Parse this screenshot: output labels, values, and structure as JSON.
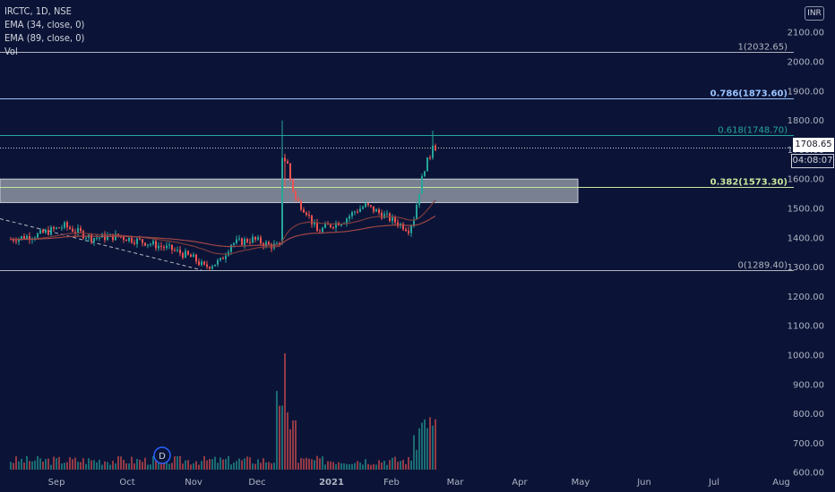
{
  "header": {
    "symbol": "IRCTC, 1D, NSE",
    "indicators": [
      "EMA (34, close, 0)",
      "EMA (89, close, 0)",
      "Vol"
    ],
    "currency": "INR"
  },
  "price_axis": {
    "current_price": "1708.65",
    "countdown": "04:08:07"
  },
  "dividend_marker": "D",
  "colors": {
    "background": "#0b1437",
    "up": "#26a69a",
    "down": "#ef5350",
    "ema34": "#7e3b3b",
    "ema89": "#a04646",
    "level_1": "#b2b5be",
    "level_0786": "#9bc3ff",
    "level_0618": "#26a69a",
    "level_0382": "#c8e69c",
    "level_0": "#b2b5be",
    "zone": "#9ea4b0"
  },
  "chart_data": {
    "type": "candlestick",
    "x_tick_labels": [
      "Sep",
      "Oct",
      "Nov",
      "Dec",
      "2021",
      "Feb",
      "Mar",
      "Apr",
      "May",
      "Jun",
      "Jul",
      "Aug"
    ],
    "y_tick_labels": [
      "2100.00",
      "2000.00",
      "1900.00",
      "1800.00",
      "1700.00",
      "1600.00",
      "1500.00",
      "1400.00",
      "1300.00",
      "1200.00",
      "1100.00",
      "1000.00",
      "900.00",
      "800.00",
      "700.00",
      "600.00"
    ],
    "ylim": [
      570,
      2180
    ],
    "price_levels": [
      {
        "label": "1(2032.65)",
        "value": 2032.65,
        "color_key": "level_1"
      },
      {
        "label": "0.786(1873.60)",
        "value": 1873.6,
        "color_key": "level_0786"
      },
      {
        "label": "0.618(1748.70)",
        "value": 1748.7,
        "color_key": "level_0618"
      },
      {
        "label": "0.382(1573.30)",
        "value": 1573.3,
        "color_key": "level_0382"
      },
      {
        "label": "0(1289.40)",
        "value": 1289.4,
        "color_key": "level_0"
      }
    ],
    "zone": {
      "from_price": 1520,
      "to_price": 1600,
      "x_start": "Aug",
      "x_end": "Apr"
    },
    "last_price": 1708.65,
    "series_note": "daily OHLC of IRCTC approximated from the visible candles",
    "volume_scale": "relative (0-1)",
    "anchors": [
      {
        "d": 0,
        "p": 1395
      },
      {
        "d": 10,
        "p": 1410
      },
      {
        "d": 20,
        "p": 1440
      },
      {
        "d": 30,
        "p": 1400
      },
      {
        "d": 40,
        "p": 1405
      },
      {
        "d": 50,
        "p": 1385
      },
      {
        "d": 60,
        "p": 1360
      },
      {
        "d": 68,
        "p": 1330
      },
      {
        "d": 72,
        "p": 1300
      },
      {
        "d": 78,
        "p": 1320
      },
      {
        "d": 82,
        "p": 1380
      },
      {
        "d": 90,
        "p": 1395
      },
      {
        "d": 96,
        "p": 1375
      },
      {
        "d": 100,
        "p": 1370
      },
      {
        "d": 101,
        "p": 1680
      },
      {
        "d": 103,
        "p": 1650
      },
      {
        "d": 104,
        "p": 1600
      },
      {
        "d": 106,
        "p": 1530
      },
      {
        "d": 110,
        "p": 1490
      },
      {
        "d": 114,
        "p": 1420
      },
      {
        "d": 118,
        "p": 1440
      },
      {
        "d": 124,
        "p": 1460
      },
      {
        "d": 128,
        "p": 1490
      },
      {
        "d": 132,
        "p": 1510
      },
      {
        "d": 138,
        "p": 1480
      },
      {
        "d": 142,
        "p": 1460
      },
      {
        "d": 148,
        "p": 1430
      },
      {
        "d": 150,
        "p": 1470
      },
      {
        "d": 152,
        "p": 1560
      },
      {
        "d": 154,
        "p": 1640
      },
      {
        "d": 156,
        "p": 1680
      },
      {
        "d": 157,
        "p": 1725
      },
      {
        "d": 158,
        "p": 1708
      }
    ]
  }
}
